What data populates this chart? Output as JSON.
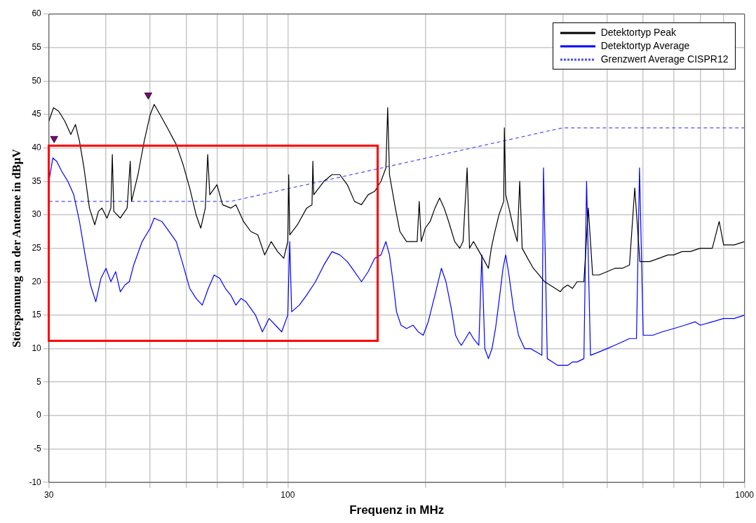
{
  "chart_data": {
    "type": "line",
    "xlabel": "Frequenz in MHz",
    "ylabel": "Störspannung an der Antenne in dBµV",
    "log": "x",
    "grid": true,
    "legend": "top right",
    "line_style": "solid",
    "marker": "none",
    "xlim": [
      30,
      1000
    ],
    "xticks": [
      30,
      {
        "value": 40,
        "label": null
      },
      {
        "value": 50,
        "label": null
      },
      {
        "value": 60,
        "label": null
      },
      {
        "value": 70,
        "label": null
      },
      {
        "value": 80,
        "label": null
      },
      {
        "value": 90,
        "label": null
      },
      100,
      {
        "value": 200,
        "label": null
      },
      {
        "value": 300,
        "label": null
      },
      {
        "value": 400,
        "label": null
      },
      {
        "value": 500,
        "label": null
      },
      {
        "value": 600,
        "label": null
      },
      {
        "value": 700,
        "label": null
      },
      {
        "value": 800,
        "label": null
      },
      {
        "value": 900,
        "label": null
      },
      1000
    ],
    "ylim": [
      -10,
      60
    ],
    "yticks": [
      -10,
      -5,
      0,
      5,
      10,
      15,
      20,
      25,
      30,
      35,
      40,
      45,
      50,
      55,
      60
    ],
    "series": [
      {
        "name": "Detektortyp Peak",
        "color": "#000000",
        "x": [
          30,
          30.7,
          31.5,
          32.5,
          33.5,
          34.3,
          35,
          35.8,
          36.8,
          37.8,
          38.5,
          39.2,
          40.2,
          41,
          41.3,
          41.6,
          43,
          44.5,
          45.2,
          45.5,
          47,
          48.5,
          50,
          51,
          52.5,
          54.5,
          57,
          59,
          61,
          63,
          64.5,
          66,
          66.8,
          67.5,
          70,
          72,
          75,
          77,
          80,
          83,
          86,
          89,
          92,
          95,
          98,
          100,
          100.5,
          101,
          105,
          110,
          113,
          113.5,
          114,
          120,
          125,
          130,
          135,
          140,
          145,
          150,
          155,
          160,
          164,
          165.5,
          167,
          172,
          176,
          182,
          188,
          192,
          194,
          196,
          200,
          205,
          210,
          215,
          220,
          225,
          232,
          238,
          242,
          247,
          250,
          255,
          260,
          265,
          270,
          275,
          279,
          283,
          290,
          297,
          298,
          300,
          305,
          312,
          318,
          322,
          326,
          335,
          345,
          355,
          365,
          375,
          385,
          395,
          400,
          410,
          420,
          430,
          445,
          455,
          465,
          480,
          500,
          520,
          540,
          560,
          575,
          590,
          620,
          650,
          680,
          700,
          730,
          760,
          800,
          850,
          880,
          900,
          950,
          1000
        ],
        "values": [
          44,
          46,
          45.5,
          44,
          42,
          43.5,
          41,
          37,
          31,
          28.5,
          30.5,
          31,
          29.5,
          31,
          39,
          30.5,
          29.5,
          31,
          38,
          32,
          36,
          41,
          45,
          46.5,
          45,
          43,
          40.5,
          37.5,
          34,
          30,
          28,
          31,
          39,
          33,
          34.5,
          31.5,
          31,
          31.5,
          29,
          27.5,
          27,
          24,
          26,
          24.5,
          23.5,
          26,
          36,
          27,
          28.5,
          31,
          31.5,
          38,
          33,
          35,
          36,
          36,
          34.5,
          32,
          31.5,
          33,
          33.5,
          35,
          37,
          46,
          36,
          31,
          27.5,
          26,
          26,
          26,
          32,
          26,
          28,
          29,
          31,
          32.5,
          31,
          29,
          26,
          25,
          26,
          37,
          25,
          26,
          25,
          24,
          23,
          22,
          25,
          27,
          30,
          32,
          43,
          33,
          31,
          28,
          26,
          35,
          25,
          23.5,
          22,
          21,
          20,
          19.5,
          19,
          18.5,
          19,
          19.5,
          19,
          20,
          20,
          31,
          21,
          21,
          21.5,
          22,
          22,
          22.5,
          34,
          23,
          23,
          23.5,
          24,
          24,
          24.5,
          24.5,
          25,
          25,
          29,
          25.5,
          25.5,
          26
        ]
      },
      {
        "name": "Detektortyp Average",
        "color": "#0000ff",
        "x": [
          30,
          30.6,
          31.2,
          32,
          33,
          34,
          35,
          36,
          37,
          38,
          39,
          40,
          41,
          42,
          43,
          44,
          45,
          46,
          48,
          50,
          51,
          53,
          55,
          57,
          59,
          61,
          63,
          65,
          67,
          69,
          71,
          73,
          75,
          77,
          79,
          81,
          83,
          85,
          88,
          91,
          94,
          97,
          100,
          101,
          102,
          106,
          110,
          115,
          120,
          125,
          130,
          135,
          140,
          145,
          150,
          155,
          160,
          164,
          167,
          170,
          173,
          177,
          182,
          188,
          193,
          198,
          203,
          210,
          217,
          222,
          228,
          233,
          237,
          240,
          245,
          250,
          255,
          262,
          266,
          270,
          275,
          280,
          285,
          290,
          296,
          300,
          305,
          312,
          320,
          330,
          340,
          350,
          360,
          363,
          370,
          380,
          390,
          400,
          410,
          420,
          430,
          445,
          451,
          460,
          480,
          500,
          520,
          540,
          560,
          580,
          589,
          600,
          630,
          660,
          700,
          740,
          780,
          800,
          850,
          900,
          950,
          1000
        ],
        "values": [
          35,
          38.5,
          38,
          36.5,
          35,
          33,
          29,
          24,
          19.5,
          17,
          20.5,
          22,
          20,
          21.5,
          18.5,
          19.5,
          20,
          22.5,
          26,
          28,
          29.5,
          29,
          27.5,
          26,
          22.5,
          19,
          17.5,
          16.5,
          19,
          21,
          20.5,
          19,
          18,
          16.5,
          17.5,
          17,
          16,
          15,
          12.5,
          14.5,
          13.5,
          12.5,
          15,
          26,
          15.5,
          16.5,
          18,
          20,
          22.5,
          24.5,
          24,
          23,
          21.5,
          20,
          21.5,
          23.5,
          24,
          26,
          24,
          20,
          15.5,
          13.5,
          13,
          13.5,
          12.5,
          12,
          14,
          18,
          22,
          20,
          16,
          12,
          11,
          10.5,
          11.5,
          12.5,
          11.5,
          10.5,
          24,
          10,
          8.5,
          10,
          13,
          17,
          22,
          24,
          21,
          16,
          12,
          10,
          10,
          9.5,
          9,
          37,
          8.5,
          8,
          7.5,
          7.5,
          7.5,
          8,
          8,
          8.5,
          35,
          9,
          9.5,
          10,
          10.5,
          11,
          11.5,
          11.5,
          37,
          12,
          12,
          12.5,
          13,
          13.5,
          14,
          13.5,
          14,
          14.5,
          14.5,
          15
        ]
      },
      {
        "name": "Grenzwert Average CISPR12",
        "color": "#4d4dff",
        "line_style": "dashed",
        "x": [
          30,
          75,
          400,
          1000
        ],
        "values": [
          32,
          32,
          43,
          43
        ]
      },
      {
        "type": "scatter",
        "color": "#800080",
        "marker": "triangle",
        "x": [
          30.8,
          49.5
        ],
        "values": [
          41.4,
          47.9
        ]
      }
    ]
  }
}
